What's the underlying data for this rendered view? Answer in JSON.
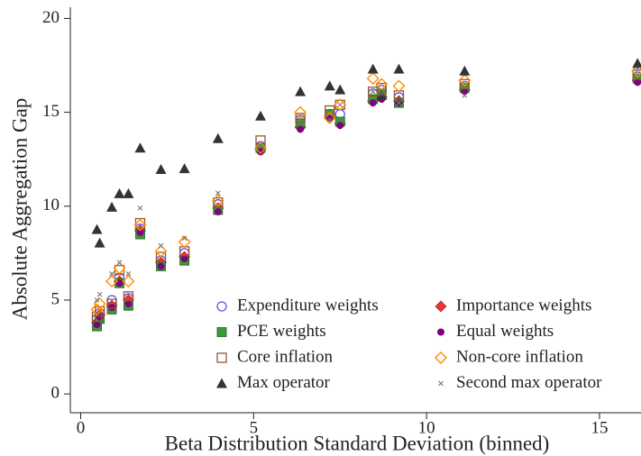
{
  "chart_data": {
    "type": "scatter",
    "x_label": "Beta Distribution Standard Deviation (binned)",
    "y_label": "Absolute Aggregation Gap",
    "xlim": [
      -0.3,
      16.2
    ],
    "ylim": [
      -1,
      20.5
    ],
    "xticks": [
      0,
      5,
      10,
      15
    ],
    "yticks": [
      0,
      5,
      10,
      15,
      20
    ],
    "x": [
      0.47,
      0.55,
      0.9,
      1.12,
      1.38,
      1.72,
      2.32,
      3.0,
      3.97,
      5.2,
      6.35,
      7.2,
      7.5,
      8.45,
      8.7,
      9.2,
      11.1,
      16.1
    ],
    "series": [
      {
        "name": "Expenditure weights",
        "color": "#5555ee",
        "marker": "open-circle",
        "values": [
          4.0,
          4.3,
          5.0,
          6.2,
          5.1,
          8.8,
          7.1,
          7.5,
          10.1,
          13.2,
          14.6,
          14.9,
          14.9,
          16.0,
          16.2,
          15.8,
          16.4,
          16.9
        ]
      },
      {
        "name": "Importance weights",
        "color": "#ee3333",
        "marker": "diamond",
        "values": [
          3.8,
          4.2,
          4.7,
          6.0,
          5.0,
          8.7,
          7.0,
          7.3,
          9.9,
          13.0,
          14.2,
          14.8,
          14.4,
          15.6,
          15.8,
          15.6,
          16.2,
          16.7
        ]
      },
      {
        "name": "PCE weights",
        "color": "#3a9a3a",
        "marker": "square",
        "values": [
          3.6,
          4.0,
          4.5,
          5.9,
          4.7,
          8.5,
          6.8,
          7.1,
          9.8,
          13.1,
          14.4,
          14.9,
          14.5,
          15.7,
          16.0,
          15.5,
          16.3,
          16.8
        ]
      },
      {
        "name": "Equal weights",
        "color": "#800080",
        "marker": "dot",
        "values": [
          3.7,
          4.1,
          4.6,
          5.9,
          4.8,
          8.6,
          6.8,
          7.2,
          9.7,
          12.9,
          14.1,
          14.7,
          14.3,
          15.5,
          15.7,
          15.5,
          16.1,
          16.6
        ]
      },
      {
        "name": "Core inflation",
        "color": "#a0522d",
        "marker": "open-square",
        "values": [
          4.1,
          4.4,
          4.8,
          6.6,
          5.2,
          9.1,
          7.3,
          7.6,
          10.2,
          13.5,
          14.7,
          15.1,
          15.4,
          16.1,
          16.3,
          15.9,
          16.5,
          17.0
        ]
      },
      {
        "name": "Non-core inflation",
        "color": "#ff8c00",
        "marker": "open-diamond",
        "values": [
          4.5,
          4.8,
          6.0,
          6.7,
          6.0,
          9.0,
          7.6,
          8.1,
          10.3,
          13.1,
          15.0,
          14.7,
          15.4,
          16.8,
          16.5,
          16.4,
          16.7,
          17.2
        ]
      },
      {
        "name": "Max operator",
        "color": "#333333",
        "marker": "triangle",
        "values": [
          8.76,
          8.04,
          9.95,
          10.67,
          10.67,
          13.1,
          11.96,
          12.0,
          13.6,
          14.8,
          16.1,
          16.4,
          16.2,
          17.3,
          15.9,
          17.3,
          17.2,
          17.6
        ]
      },
      {
        "name": "Second max operator",
        "color": "#777777",
        "marker": "cross",
        "values": [
          5.0,
          5.3,
          6.4,
          7.0,
          6.4,
          9.9,
          7.9,
          8.3,
          10.7,
          13.2,
          14.6,
          14.6,
          15.4,
          16.1,
          16.0,
          15.5,
          15.9,
          17.3
        ]
      }
    ]
  }
}
